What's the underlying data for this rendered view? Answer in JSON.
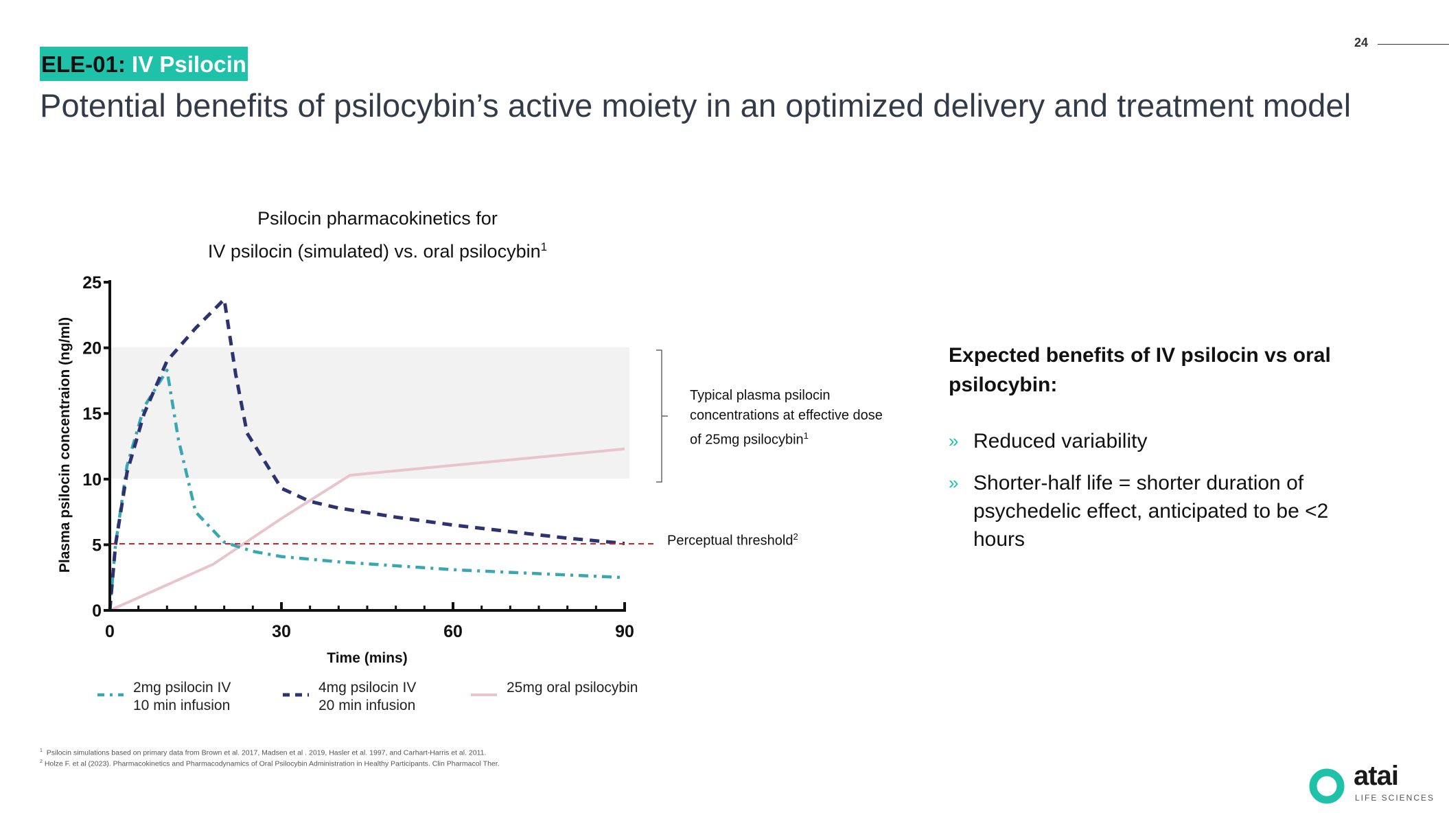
{
  "page_number": "24",
  "header": {
    "tag_code": "ELE-01:",
    "tag_name": "IV Psilocin",
    "title": "Potential benefits of psilocybin’s active moiety in an optimized delivery and treatment model"
  },
  "chart_title": {
    "line1": "Psilocin pharmacokinetics for",
    "line2": "IV psilocin (simulated) vs. oral psilocybin",
    "sup": "1"
  },
  "band_annotation": {
    "text": "Typical plasma psilocin concentrations at effective dose of 25mg psilocybin",
    "sup": "1"
  },
  "threshold_annotation": {
    "text": "Perceptual threshold",
    "sup": "2"
  },
  "benefits": {
    "heading": "Expected benefits of IV psilocin vs oral psilocybin:",
    "bullet_glyph": "»",
    "items": [
      "Reduced variability",
      "Shorter-half life = shorter duration of psychedelic effect, anticipated to be <2 hours"
    ]
  },
  "footnotes": [
    {
      "sup": "1",
      "text": "Psilocin simulations based on primary data from Brown et al. 2017, Madsen et al . 2019, Hasler et al. 1997, and Carhart-Harris et al. 2011."
    },
    {
      "sup": "2",
      "text": "Holze F. et al (2023). Pharmacokinetics and Pharmacodynamics of Oral Psilocybin Administration in Healthy Participants. Clin Pharmacol Ther."
    }
  ],
  "logo": {
    "word": "atai",
    "subtitle": "LIFE SCIENCES"
  },
  "colors": {
    "accent": "#1fc2a8",
    "series_2mg": "#3aa6b0",
    "series_4mg": "#2d3270",
    "series_oral": "#e8c4cc",
    "threshold": "#d0202a",
    "band": "#f2f2f2"
  },
  "chart_data": {
    "type": "line",
    "xlabel": "Time (mins)",
    "ylabel": "Plasma psilocin concentraion (ng/ml)",
    "xlim": [
      0,
      90
    ],
    "ylim": [
      0,
      25
    ],
    "x_ticks": [
      0,
      30,
      60,
      90
    ],
    "y_ticks": [
      0,
      5,
      10,
      15,
      20,
      25
    ],
    "grid": false,
    "legend_position": "bottom",
    "band": {
      "y_from": 10,
      "y_to": 20
    },
    "threshold": 5,
    "series": [
      {
        "name": "2mg psilocin IV\n10 min infusion",
        "style": "dashdot",
        "x": [
          0,
          1,
          3,
          6,
          10,
          12,
          15,
          20,
          25,
          30,
          40,
          50,
          60,
          70,
          80,
          90
        ],
        "y": [
          0,
          5,
          11,
          15.5,
          18.3,
          13,
          7.5,
          5.2,
          4.5,
          4.1,
          3.7,
          3.4,
          3.1,
          2.9,
          2.7,
          2.5
        ]
      },
      {
        "name": "4mg psilocin IV\n20 min infusion",
        "style": "dashed",
        "x": [
          0,
          1,
          3,
          6,
          10,
          15,
          20,
          22,
          24,
          30,
          35,
          40,
          50,
          60,
          70,
          80,
          90
        ],
        "y": [
          0,
          5,
          10.5,
          15,
          19,
          21.5,
          23.7,
          18,
          13.5,
          9.3,
          8.3,
          7.8,
          7.1,
          6.5,
          6,
          5.5,
          5.1
        ]
      },
      {
        "name": "25mg oral psilocybin",
        "style": "solid",
        "x": [
          0,
          18,
          30,
          42,
          90
        ],
        "y": [
          0,
          3.5,
          7,
          10.3,
          12.3
        ]
      }
    ]
  }
}
